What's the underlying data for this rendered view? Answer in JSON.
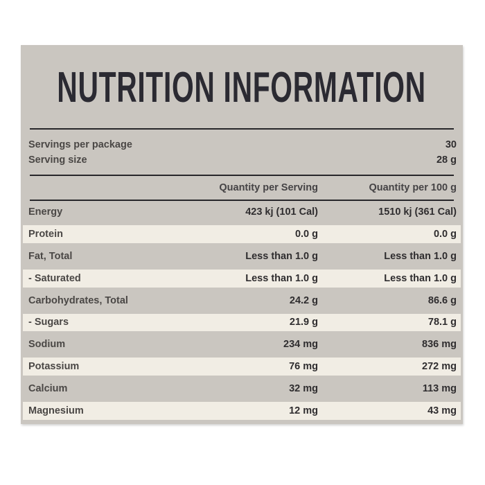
{
  "label": {
    "title": "NUTRITION INFORMATION",
    "servings": [
      {
        "label": "Servings per package",
        "value": "30"
      },
      {
        "label": "Serving size",
        "value": "28 g"
      }
    ],
    "columns": {
      "per_serving": "Quantity per Serving",
      "per_100g": "Quantity per 100 g"
    },
    "rows": [
      {
        "nutrient": "Energy",
        "per_serving": "423 kj (101 Cal)",
        "per_100g": "1510 kj (361 Cal)"
      },
      {
        "nutrient": "Protein",
        "per_serving": "0.0 g",
        "per_100g": "0.0 g"
      },
      {
        "nutrient": "Fat, Total",
        "per_serving": "Less than 1.0 g",
        "per_100g": "Less than 1.0 g"
      },
      {
        "nutrient": "- Saturated",
        "per_serving": "Less than 1.0 g",
        "per_100g": "Less than 1.0 g"
      },
      {
        "nutrient": "Carbohydrates, Total",
        "per_serving": "24.2 g",
        "per_100g": "86.6 g"
      },
      {
        "nutrient": "- Sugars",
        "per_serving": "21.9 g",
        "per_100g": "78.1 g"
      },
      {
        "nutrient": "Sodium",
        "per_serving": "234 mg",
        "per_100g": "836 mg"
      },
      {
        "nutrient": "Potassium",
        "per_serving": "76 mg",
        "per_100g": "272 mg"
      },
      {
        "nutrient": "Calcium",
        "per_serving": "32 mg",
        "per_100g": "113 mg"
      },
      {
        "nutrient": "Magnesium",
        "per_serving": "12 mg",
        "per_100g": "43 mg"
      }
    ],
    "colors": {
      "page_bg": "#ffffff",
      "panel_bg": "#cac6c0",
      "row_alt_bg": "#f1ede4",
      "title_text": "#2b2a32",
      "body_text": "#3e3c3d",
      "rule": "#27262a"
    }
  }
}
